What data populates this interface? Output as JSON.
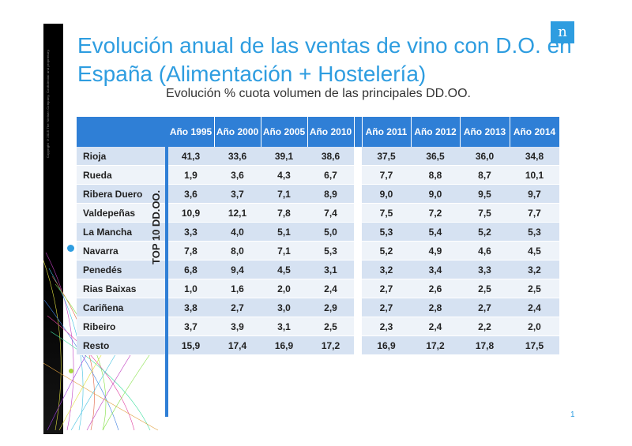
{
  "slide": {
    "title": "Evolución anual de las ventas de vino con D.O. en España (Alimentación + Hostelería)",
    "subtitle": "Evolución % cuota volumen de las principales DD.OO.",
    "copyright": "Copyright ©2015 The Nielsen Company. Confidential and proprietary.",
    "logo_letter": "n",
    "page_number": "1",
    "side_label": "TOP 10 DD.OO."
  },
  "table": {
    "headers": [
      "Año 1995",
      "Año 2000",
      "Año 2005",
      "Año 2010",
      "Año 2011",
      "Año 2012",
      "Año 2013",
      "Año 2014"
    ],
    "rows": [
      {
        "name": "Rioja",
        "values": [
          "41,3",
          "33,6",
          "39,1",
          "38,6",
          "37,5",
          "36,5",
          "36,0",
          "34,8"
        ]
      },
      {
        "name": "Rueda",
        "values": [
          "1,9",
          "3,6",
          "4,3",
          "6,7",
          "7,7",
          "8,8",
          "8,7",
          "10,1"
        ]
      },
      {
        "name": "Ribera Duero",
        "values": [
          "3,6",
          "3,7",
          "7,1",
          "8,9",
          "9,0",
          "9,0",
          "9,5",
          "9,7"
        ]
      },
      {
        "name": "Valdepeñas",
        "values": [
          "10,9",
          "12,1",
          "7,8",
          "7,4",
          "7,5",
          "7,2",
          "7,5",
          "7,7"
        ]
      },
      {
        "name": "La Mancha",
        "values": [
          "3,3",
          "4,0",
          "5,1",
          "5,0",
          "5,3",
          "5,4",
          "5,2",
          "5,3"
        ]
      },
      {
        "name": "Navarra",
        "values": [
          "7,8",
          "8,0",
          "7,1",
          "5,3",
          "5,2",
          "4,9",
          "4,6",
          "4,5"
        ]
      },
      {
        "name": "Penedés",
        "values": [
          "6,8",
          "9,4",
          "4,5",
          "3,1",
          "3,2",
          "3,4",
          "3,3",
          "3,2"
        ]
      },
      {
        "name": "Rias Baixas",
        "values": [
          "1,0",
          "1,6",
          "2,0",
          "2,4",
          "2,7",
          "2,6",
          "2,5",
          "2,5"
        ]
      },
      {
        "name": "Cariñena",
        "values": [
          "3,8",
          "2,7",
          "3,0",
          "2,9",
          "2,7",
          "2,8",
          "2,7",
          "2,4"
        ]
      },
      {
        "name": "Ribeiro",
        "values": [
          "3,7",
          "3,9",
          "3,1",
          "2,5",
          "2,3",
          "2,4",
          "2,2",
          "2,0"
        ]
      },
      {
        "name": "Resto",
        "values": [
          "15,9",
          "17,4",
          "16,9",
          "17,2",
          "16,9",
          "17,2",
          "17,8",
          "17,5"
        ]
      }
    ]
  },
  "colors": {
    "accent": "#2e9de0",
    "header_bg": "#2f7fd6",
    "row_odd": "#d6e2f2",
    "row_even": "#eef3f9"
  }
}
